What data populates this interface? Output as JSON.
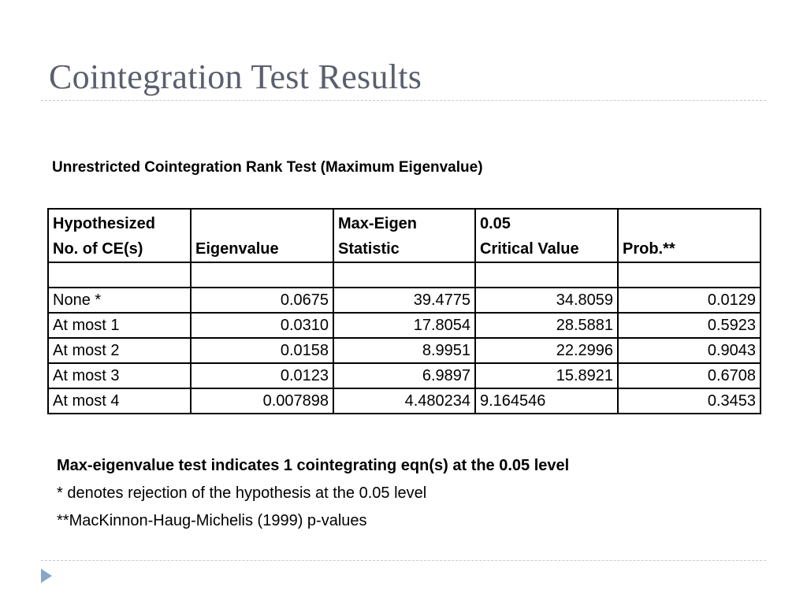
{
  "slide": {
    "title": "Cointegration Test Results",
    "subtitle": "Unrestricted Cointegration Rank Test (Maximum Eigenvalue)"
  },
  "table": {
    "headers": [
      [
        "Hypothesized",
        "No. of CE(s)"
      ],
      [
        "",
        "Eigenvalue"
      ],
      [
        "Max-Eigen",
        "Statistic"
      ],
      [
        "0.05",
        "Critical Value"
      ],
      [
        "",
        "Prob.**"
      ]
    ],
    "rows": [
      [
        "",
        "",
        "",
        "",
        ""
      ],
      [
        "None *",
        "0.0675",
        "39.4775",
        "34.8059",
        "0.0129"
      ],
      [
        "At most 1",
        "0.0310",
        "17.8054",
        "28.5881",
        "0.5923"
      ],
      [
        "At most 2",
        "0.0158",
        "8.9951",
        "22.2996",
        "0.9043"
      ],
      [
        "At most 3",
        "0.0123",
        "6.9897",
        "15.8921",
        "0.6708"
      ],
      [
        "At most 4",
        "0.007898",
        "4.480234",
        "9.164546",
        "0.3453"
      ]
    ]
  },
  "notes": {
    "conclusion": "Max-eigenvalue test indicates 1 cointegrating eqn(s) at the 0.05 level",
    "asterisk_note": "* denotes rejection of the hypothesis at the 0.05 level",
    "pvalue_note": "**MacKinnon-Haug-Michelis (1999) p-values"
  },
  "colors": {
    "title": "#5a5f6e",
    "rule": "#c3cbd6",
    "nav_arrow": "#8aa6c6"
  },
  "icons": {
    "nav": "next-slide-triangle-icon"
  }
}
